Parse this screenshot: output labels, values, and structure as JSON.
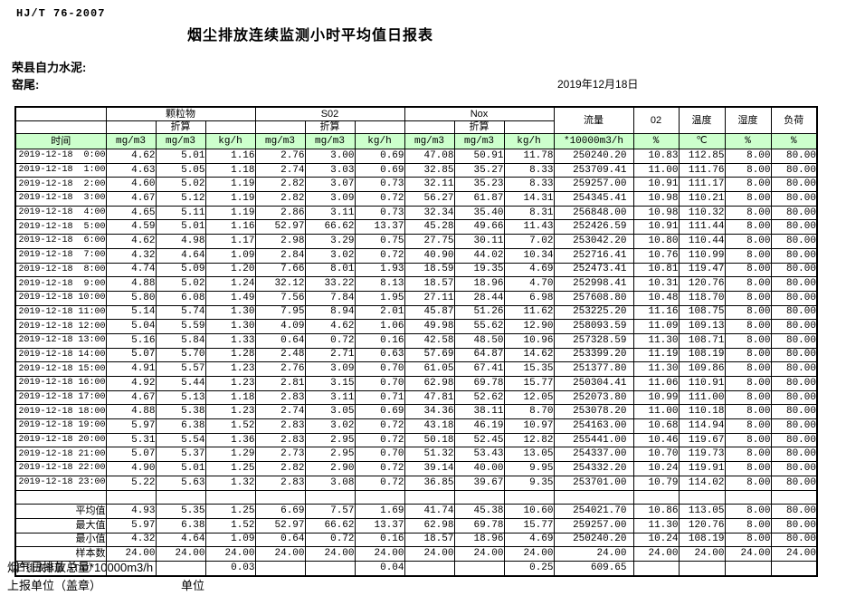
{
  "page": {
    "doc_code": "HJ/T  76-2007",
    "title": "烟尘排放连续监测小时平均值日报表",
    "company": "荣县自力水泥:",
    "station": "窑尾:",
    "date": "2019年12月18日",
    "footnote": "烟气日排放总量*10000m3/h",
    "report_unit": "上报单位（盖章）",
    "unit_label": "单位"
  },
  "colors": {
    "header_green": "#ccffcc",
    "border": "#000000"
  },
  "table": {
    "time_header": "时间",
    "groups": [
      "颗粒物",
      "S02",
      "Nox"
    ],
    "conv_label": "折算",
    "single_cols": [
      "流量",
      "02",
      "温度",
      "湿度",
      "负荷"
    ],
    "units": [
      "mg/m3",
      "mg/m3",
      "kg/h",
      "mg/m3",
      "mg/m3",
      "kg/h",
      "mg/m3",
      "mg/m3",
      "kg/h",
      "*10000m3/h",
      "%",
      "℃",
      "%",
      "%"
    ],
    "rows": [
      {
        "time": "2019-12-18  0:00",
        "values": [
          "4.62",
          "5.01",
          "1.16",
          "2.76",
          "3.00",
          "0.69",
          "47.08",
          "50.91",
          "11.78",
          "250240.20",
          "10.83",
          "112.85",
          "8.00",
          "80.00"
        ]
      },
      {
        "time": "2019-12-18  1:00",
        "values": [
          "4.63",
          "5.05",
          "1.18",
          "2.74",
          "3.03",
          "0.69",
          "32.85",
          "35.27",
          "8.33",
          "253709.41",
          "11.00",
          "111.76",
          "8.00",
          "80.00"
        ]
      },
      {
        "time": "2019-12-18  2:00",
        "values": [
          "4.60",
          "5.02",
          "1.19",
          "2.82",
          "3.07",
          "0.73",
          "32.11",
          "35.23",
          "8.33",
          "259257.00",
          "10.91",
          "111.17",
          "8.00",
          "80.00"
        ]
      },
      {
        "time": "2019-12-18  3:00",
        "values": [
          "4.67",
          "5.12",
          "1.19",
          "2.82",
          "3.09",
          "0.72",
          "56.27",
          "61.87",
          "14.31",
          "254345.41",
          "10.98",
          "110.21",
          "8.00",
          "80.00"
        ]
      },
      {
        "time": "2019-12-18  4:00",
        "values": [
          "4.65",
          "5.11",
          "1.19",
          "2.86",
          "3.11",
          "0.73",
          "32.34",
          "35.40",
          "8.31",
          "256848.00",
          "10.98",
          "110.32",
          "8.00",
          "80.00"
        ]
      },
      {
        "time": "2019-12-18  5:00",
        "values": [
          "4.59",
          "5.01",
          "1.16",
          "52.97",
          "66.62",
          "13.37",
          "45.28",
          "49.66",
          "11.43",
          "252426.59",
          "10.91",
          "111.44",
          "8.00",
          "80.00"
        ]
      },
      {
        "time": "2019-12-18  6:00",
        "values": [
          "4.62",
          "4.98",
          "1.17",
          "2.98",
          "3.29",
          "0.75",
          "27.75",
          "30.11",
          "7.02",
          "253042.20",
          "10.80",
          "110.44",
          "8.00",
          "80.00"
        ]
      },
      {
        "time": "2019-12-18  7:00",
        "values": [
          "4.32",
          "4.64",
          "1.09",
          "2.84",
          "3.02",
          "0.72",
          "40.90",
          "44.02",
          "10.34",
          "252716.41",
          "10.76",
          "110.99",
          "8.00",
          "80.00"
        ]
      },
      {
        "time": "2019-12-18  8:00",
        "values": [
          "4.74",
          "5.09",
          "1.20",
          "7.66",
          "8.01",
          "1.93",
          "18.59",
          "19.35",
          "4.69",
          "252473.41",
          "10.81",
          "119.47",
          "8.00",
          "80.00"
        ]
      },
      {
        "time": "2019-12-18  9:00",
        "values": [
          "4.88",
          "5.02",
          "1.24",
          "32.12",
          "33.22",
          "8.13",
          "18.57",
          "18.96",
          "4.70",
          "252998.41",
          "10.31",
          "120.76",
          "8.00",
          "80.00"
        ]
      },
      {
        "time": "2019-12-18 10:00",
        "values": [
          "5.80",
          "6.08",
          "1.49",
          "7.56",
          "7.84",
          "1.95",
          "27.11",
          "28.44",
          "6.98",
          "257608.80",
          "10.48",
          "118.70",
          "8.00",
          "80.00"
        ]
      },
      {
        "time": "2019-12-18 11:00",
        "values": [
          "5.14",
          "5.74",
          "1.30",
          "7.95",
          "8.94",
          "2.01",
          "45.87",
          "51.26",
          "11.62",
          "253225.20",
          "11.16",
          "108.75",
          "8.00",
          "80.00"
        ]
      },
      {
        "time": "2019-12-18 12:00",
        "values": [
          "5.04",
          "5.59",
          "1.30",
          "4.09",
          "4.62",
          "1.06",
          "49.98",
          "55.62",
          "12.90",
          "258093.59",
          "11.09",
          "109.13",
          "8.00",
          "80.00"
        ]
      },
      {
        "time": "2019-12-18 13:00",
        "values": [
          "5.16",
          "5.84",
          "1.33",
          "0.64",
          "0.72",
          "0.16",
          "42.58",
          "48.50",
          "10.96",
          "257328.59",
          "11.30",
          "108.71",
          "8.00",
          "80.00"
        ]
      },
      {
        "time": "2019-12-18 14:00",
        "values": [
          "5.07",
          "5.70",
          "1.28",
          "2.48",
          "2.71",
          "0.63",
          "57.69",
          "64.87",
          "14.62",
          "253399.20",
          "11.19",
          "108.19",
          "8.00",
          "80.00"
        ]
      },
      {
        "time": "2019-12-18 15:00",
        "values": [
          "4.91",
          "5.57",
          "1.23",
          "2.76",
          "3.09",
          "0.70",
          "61.05",
          "67.41",
          "15.35",
          "251377.80",
          "11.30",
          "109.86",
          "8.00",
          "80.00"
        ]
      },
      {
        "time": "2019-12-18 16:00",
        "values": [
          "4.92",
          "5.44",
          "1.23",
          "2.81",
          "3.15",
          "0.70",
          "62.98",
          "69.78",
          "15.77",
          "250304.41",
          "11.06",
          "110.91",
          "8.00",
          "80.00"
        ]
      },
      {
        "time": "2019-12-18 17:00",
        "values": [
          "4.67",
          "5.13",
          "1.18",
          "2.83",
          "3.11",
          "0.71",
          "47.81",
          "52.62",
          "12.05",
          "252073.80",
          "10.99",
          "111.00",
          "8.00",
          "80.00"
        ]
      },
      {
        "time": "2019-12-18 18:00",
        "values": [
          "4.88",
          "5.38",
          "1.23",
          "2.74",
          "3.05",
          "0.69",
          "34.36",
          "38.11",
          "8.70",
          "253078.20",
          "11.00",
          "110.18",
          "8.00",
          "80.00"
        ]
      },
      {
        "time": "2019-12-18 19:00",
        "values": [
          "5.97",
          "6.38",
          "1.52",
          "2.83",
          "3.02",
          "0.72",
          "43.18",
          "46.19",
          "10.97",
          "254163.00",
          "10.68",
          "114.94",
          "8.00",
          "80.00"
        ]
      },
      {
        "time": "2019-12-18 20:00",
        "values": [
          "5.31",
          "5.54",
          "1.36",
          "2.83",
          "2.95",
          "0.72",
          "50.18",
          "52.45",
          "12.82",
          "255441.00",
          "10.46",
          "119.67",
          "8.00",
          "80.00"
        ]
      },
      {
        "time": "2019-12-18 21:00",
        "values": [
          "5.07",
          "5.37",
          "1.29",
          "2.73",
          "2.95",
          "0.70",
          "51.32",
          "53.43",
          "13.05",
          "254337.00",
          "10.70",
          "119.73",
          "8.00",
          "80.00"
        ]
      },
      {
        "time": "2019-12-18 22:00",
        "values": [
          "4.90",
          "5.01",
          "1.25",
          "2.82",
          "2.90",
          "0.72",
          "39.14",
          "40.00",
          "9.95",
          "254332.20",
          "10.24",
          "119.91",
          "8.00",
          "80.00"
        ]
      },
      {
        "time": "2019-12-18 23:00",
        "values": [
          "5.22",
          "5.63",
          "1.32",
          "2.83",
          "3.08",
          "0.72",
          "36.85",
          "39.67",
          "9.35",
          "253701.00",
          "10.79",
          "114.02",
          "8.00",
          "80.00"
        ]
      }
    ],
    "summary": [
      {
        "type": "spacer",
        "label": "",
        "values": [
          "",
          "",
          "",
          "",
          "",
          "",
          "",
          "",
          "",
          "",
          "",
          "",
          "",
          ""
        ]
      },
      {
        "type": "stat",
        "label": "平均值",
        "values": [
          "4.93",
          "5.35",
          "1.25",
          "6.69",
          "7.57",
          "1.69",
          "41.74",
          "45.38",
          "10.60",
          "254021.70",
          "10.86",
          "113.05",
          "8.00",
          "80.00"
        ]
      },
      {
        "type": "stat",
        "label": "最大值",
        "values": [
          "5.97",
          "6.38",
          "1.52",
          "52.97",
          "66.62",
          "13.37",
          "62.98",
          "69.78",
          "15.77",
          "259257.00",
          "11.30",
          "120.76",
          "8.00",
          "80.00"
        ]
      },
      {
        "type": "stat",
        "label": "最小值",
        "values": [
          "4.32",
          "4.64",
          "1.09",
          "0.64",
          "0.72",
          "0.16",
          "18.57",
          "18.96",
          "4.69",
          "250240.20",
          "10.24",
          "108.19",
          "8.00",
          "80.00"
        ]
      },
      {
        "type": "stat",
        "label": "样本数",
        "values": [
          "24.00",
          "24.00",
          "24.00",
          "24.00",
          "24.00",
          "24.00",
          "24.00",
          "24.00",
          "24.00",
          "24.00",
          "24.00",
          "24.00",
          "24.00",
          "24.00"
        ]
      },
      {
        "type": "total",
        "label": "日排放总量（T/D）",
        "values": [
          "",
          "",
          "0.03",
          "",
          "",
          "0.04",
          "",
          "",
          "0.25",
          "609.65",
          "",
          "",
          "",
          ""
        ]
      }
    ]
  }
}
